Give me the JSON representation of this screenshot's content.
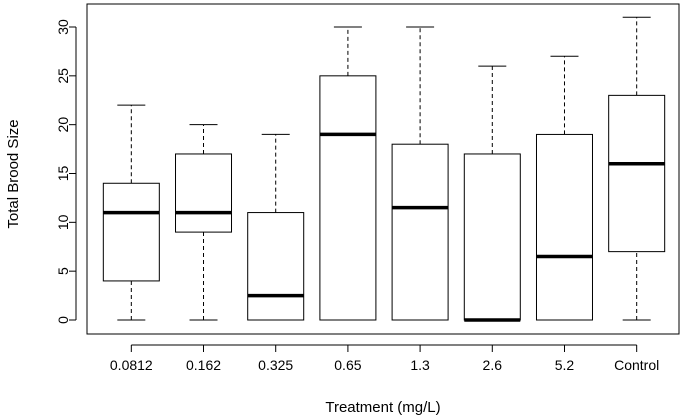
{
  "chart_data": {
    "type": "boxplot",
    "title": "",
    "xlabel": "Treatment (mg/L)",
    "ylabel": "Total Brood Size",
    "ylim": [
      0,
      30
    ],
    "yticks": [
      0,
      5,
      10,
      15,
      20,
      25,
      30
    ],
    "categories": [
      "0.0812",
      "0.162",
      "0.325",
      "0.65",
      "1.3",
      "2.6",
      "5.2",
      "Control"
    ],
    "boxes": [
      {
        "min": 0,
        "q1": 4,
        "median": 11,
        "q3": 14,
        "max": 22
      },
      {
        "min": 0,
        "q1": 9,
        "median": 11,
        "q3": 17,
        "max": 20
      },
      {
        "min": 0,
        "q1": 0,
        "median": 2.5,
        "q3": 11,
        "max": 19
      },
      {
        "min": 0,
        "q1": 0,
        "median": 19,
        "q3": 25,
        "max": 30
      },
      {
        "min": 0,
        "q1": 0,
        "median": 11.5,
        "q3": 18,
        "max": 30
      },
      {
        "min": 0,
        "q1": 0,
        "median": 0,
        "q3": 17,
        "max": 26
      },
      {
        "min": 0,
        "q1": 0,
        "median": 6.5,
        "q3": 19,
        "max": 27
      },
      {
        "min": 0,
        "q1": 7,
        "median": 16,
        "q3": 23,
        "max": 31
      }
    ]
  }
}
